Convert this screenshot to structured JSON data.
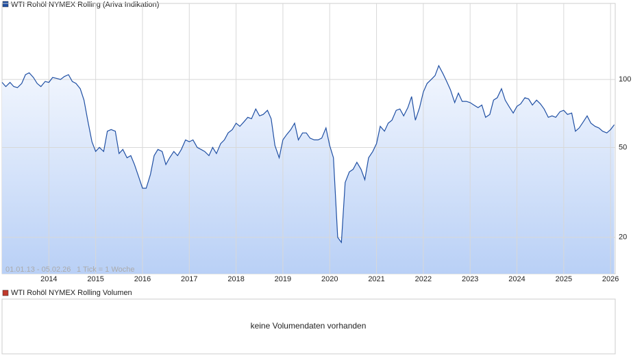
{
  "chart_data": {
    "type": "line",
    "series": [
      {
        "name": "WTI Rohöl NYMEX Rolling (Ariva Indikation)",
        "color": "#1f4fa3",
        "values": [
          97,
          93,
          97,
          93,
          92,
          96,
          105,
          107,
          102,
          96,
          93,
          98,
          97,
          102,
          101,
          100,
          103,
          105,
          98,
          96,
          91,
          81,
          66,
          53,
          48,
          50,
          48,
          59,
          60,
          59,
          47,
          49,
          45,
          46,
          42,
          37,
          33,
          33,
          38,
          46,
          49,
          48,
          42,
          45,
          48,
          46,
          49,
          54,
          53,
          54,
          50,
          49,
          48,
          46,
          50,
          47,
          52,
          54,
          58,
          60,
          64,
          62,
          65,
          68,
          67,
          74,
          69,
          70,
          73,
          67,
          51,
          45,
          54,
          57,
          60,
          64,
          54,
          58,
          58,
          55,
          54,
          54,
          55,
          61,
          51,
          45,
          20,
          19,
          35,
          39,
          40,
          43,
          40,
          36,
          45,
          48,
          52,
          62,
          59,
          64,
          66,
          73,
          74,
          69,
          75,
          84,
          66,
          75,
          88,
          96,
          100,
          104,
          115,
          106,
          98,
          90,
          79,
          87,
          80,
          80,
          79,
          77,
          75,
          77,
          68,
          70,
          81,
          83,
          91,
          81,
          76,
          71,
          76,
          78,
          83,
          82,
          77,
          81,
          78,
          74,
          68,
          69,
          68,
          72,
          73,
          70,
          71,
          59,
          61,
          65,
          69,
          64,
          62,
          61,
          59,
          58,
          60,
          63
        ]
      }
    ],
    "x": [
      2013,
      2013.08,
      2013.17,
      2013.25,
      2013.33,
      2013.42,
      2013.5,
      2013.58,
      2013.67,
      2013.75,
      2013.83,
      2013.92,
      2014,
      2014.08,
      2014.17,
      2014.25,
      2014.33,
      2014.42,
      2014.5,
      2014.58,
      2014.67,
      2014.75,
      2014.83,
      2014.92,
      2015,
      2015.08,
      2015.17,
      2015.25,
      2015.33,
      2015.42,
      2015.5,
      2015.58,
      2015.67,
      2015.75,
      2015.83,
      2015.92,
      2016,
      2016.08,
      2016.17,
      2016.25,
      2016.33,
      2016.42,
      2016.5,
      2016.58,
      2016.67,
      2016.75,
      2016.83,
      2016.92,
      2017,
      2017.08,
      2017.17,
      2017.25,
      2017.33,
      2017.42,
      2017.5,
      2017.58,
      2017.67,
      2017.75,
      2017.83,
      2017.92,
      2018,
      2018.08,
      2018.17,
      2018.25,
      2018.33,
      2018.42,
      2018.5,
      2018.58,
      2018.67,
      2018.75,
      2018.83,
      2018.92,
      2019,
      2019.08,
      2019.17,
      2019.25,
      2019.33,
      2019.42,
      2019.5,
      2019.58,
      2019.67,
      2019.75,
      2019.83,
      2019.92,
      2020,
      2020.08,
      2020.17,
      2020.25,
      2020.33,
      2020.42,
      2020.5,
      2020.58,
      2020.67,
      2020.75,
      2020.83,
      2020.92,
      2021,
      2021.08,
      2021.17,
      2021.25,
      2021.33,
      2021.42,
      2021.5,
      2021.58,
      2021.67,
      2021.75,
      2021.83,
      2021.92,
      2022,
      2022.08,
      2022.17,
      2022.25,
      2022.33,
      2022.42,
      2022.5,
      2022.58,
      2022.67,
      2022.75,
      2022.83,
      2022.92,
      2023,
      2023.08,
      2023.17,
      2023.25,
      2023.33,
      2023.42,
      2023.5,
      2023.58,
      2023.67,
      2023.75,
      2023.83,
      2023.92,
      2024,
      2024.08,
      2024.17,
      2024.25,
      2024.33,
      2024.42,
      2024.5,
      2024.58,
      2024.67,
      2024.75,
      2024.83,
      2024.92,
      2025,
      2025.08,
      2025.17,
      2025.25,
      2025.33,
      2025.42,
      2025.5,
      2025.58,
      2025.67,
      2025.75,
      2025.83,
      2025.92,
      2026,
      2026.08
    ],
    "xlim": [
      2013,
      2026.1
    ],
    "xticks": [
      2014,
      2015,
      2016,
      2017,
      2018,
      2019,
      2020,
      2021,
      2022,
      2023,
      2024,
      2025,
      2026
    ],
    "ylim": [
      13.8,
      217
    ],
    "yticks": [
      20,
      50,
      100
    ],
    "log_y": true,
    "grid": true,
    "range_note": "01.01.13 - 05.02.26",
    "tick_note": "1 Tick = 1 Woche"
  },
  "volume_panel": {
    "title": "WTI Rohöl NYMEX Rolling Volumen",
    "color": "#c0392b",
    "message": "keine Volumendaten vorhanden"
  }
}
